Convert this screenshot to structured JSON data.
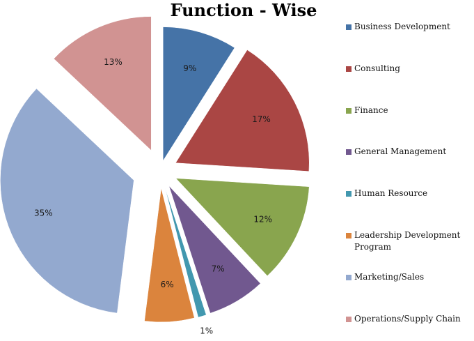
{
  "chart_data": {
    "type": "pie",
    "title": "Function - Wise",
    "categories": [
      "Business Development",
      "Consulting",
      "Finance",
      "General Management",
      "Human Resource",
      "Leadership Development Program",
      "Marketing/Sales",
      "Operations/Supply Chain"
    ],
    "legend_labels": [
      "Business Development",
      "Consulting",
      "Finance",
      "General Management",
      "Human Resource",
      "Leadership Development\nProgram",
      "Marketing/Sales",
      "Operations/Supply Chain"
    ],
    "values": [
      9,
      17,
      12,
      7,
      1,
      6,
      35,
      13
    ],
    "data_labels": [
      "9%",
      "17%",
      "12%",
      "7%",
      "1%",
      "6%",
      "35%",
      "13%"
    ],
    "colors": [
      "#4573A7",
      "#AA4644",
      "#89A54E",
      "#71588F",
      "#4298AF",
      "#DB843D",
      "#93A9CF",
      "#D19392"
    ],
    "exploded": true,
    "start_angle_deg": 0,
    "direction": "clockwise",
    "legend_position": "right"
  }
}
